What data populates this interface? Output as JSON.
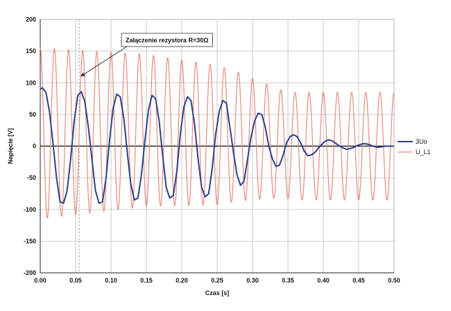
{
  "chart_data": {
    "type": "line",
    "title": "",
    "xlabel": "Czas [s]",
    "ylabel": "Napięcie [V]",
    "xlim": [
      0,
      0.5
    ],
    "ylim": [
      -200,
      200
    ],
    "xticks": [
      "0.00",
      "0.05",
      "0.10",
      "0.15",
      "0.20",
      "0.25",
      "0.30",
      "0.35",
      "0.40",
      "0.45",
      "0.50"
    ],
    "yticks": [
      "200",
      "150",
      "100",
      "50",
      "0",
      "-50",
      "-100",
      "-150",
      "-200"
    ],
    "xtick_values": [
      0,
      0.05,
      0.1,
      0.15,
      0.2,
      0.25,
      0.3,
      0.35,
      0.4,
      0.45,
      0.5
    ],
    "ytick_values": [
      200,
      150,
      100,
      50,
      0,
      -50,
      -100,
      -150,
      -200
    ],
    "grid": true,
    "legend_position": "right",
    "annotation": {
      "text": "Załączenie rezystora R=30Ω",
      "x": 0.055,
      "y": 110
    },
    "series": [
      {
        "name": "3Uo",
        "color": "#2b3f8c",
        "x": [
          0.0,
          0.003,
          0.008,
          0.013,
          0.018,
          0.023,
          0.028,
          0.033,
          0.038,
          0.043,
          0.048,
          0.053,
          0.058,
          0.063,
          0.068,
          0.073,
          0.078,
          0.083,
          0.088,
          0.093,
          0.098,
          0.103,
          0.108,
          0.113,
          0.118,
          0.123,
          0.128,
          0.133,
          0.138,
          0.143,
          0.148,
          0.153,
          0.158,
          0.163,
          0.168,
          0.173,
          0.178,
          0.183,
          0.188,
          0.193,
          0.198,
          0.203,
          0.208,
          0.213,
          0.218,
          0.223,
          0.228,
          0.233,
          0.238,
          0.243,
          0.248,
          0.253,
          0.258,
          0.263,
          0.268,
          0.273,
          0.278,
          0.283,
          0.288,
          0.293,
          0.298,
          0.303,
          0.308,
          0.313,
          0.318,
          0.323,
          0.328,
          0.333,
          0.338,
          0.343,
          0.348,
          0.353,
          0.358,
          0.363,
          0.368,
          0.373,
          0.378,
          0.383,
          0.388,
          0.393,
          0.398,
          0.403,
          0.408,
          0.413,
          0.418,
          0.423,
          0.428,
          0.433,
          0.438,
          0.443,
          0.448,
          0.453,
          0.458,
          0.463,
          0.468,
          0.473,
          0.478,
          0.483,
          0.488,
          0.493,
          0.498,
          0.5
        ],
        "values": [
          90,
          92,
          85,
          55,
          5,
          -50,
          -88,
          -90,
          -70,
          -20,
          40,
          80,
          86,
          70,
          30,
          -20,
          -70,
          -90,
          -88,
          -50,
          10,
          60,
          82,
          78,
          45,
          -10,
          -60,
          -85,
          -82,
          -45,
          10,
          58,
          80,
          75,
          40,
          -15,
          -65,
          -82,
          -78,
          -40,
          20,
          62,
          78,
          72,
          35,
          -20,
          -65,
          -80,
          -75,
          -35,
          20,
          55,
          72,
          68,
          30,
          -10,
          -45,
          -62,
          -55,
          -20,
          15,
          40,
          52,
          50,
          30,
          0,
          -20,
          -32,
          -30,
          -15,
          5,
          15,
          18,
          15,
          5,
          -8,
          -15,
          -14,
          -10,
          -3,
          3,
          8,
          10,
          8,
          4,
          0,
          -3,
          -5,
          -4,
          -2,
          1,
          3,
          4,
          3,
          1,
          -1,
          -2,
          -1,
          0,
          0,
          0,
          0
        ],
        "width": 2
      },
      {
        "name": "U_L1",
        "color": "#e58a7c",
        "x": [],
        "values": [],
        "width": 1.2
      }
    ]
  },
  "legend": {
    "items": [
      {
        "label": "3Uo",
        "color": "#2b3f8c"
      },
      {
        "label": "U_L1",
        "color": "#e58a7c"
      }
    ]
  }
}
